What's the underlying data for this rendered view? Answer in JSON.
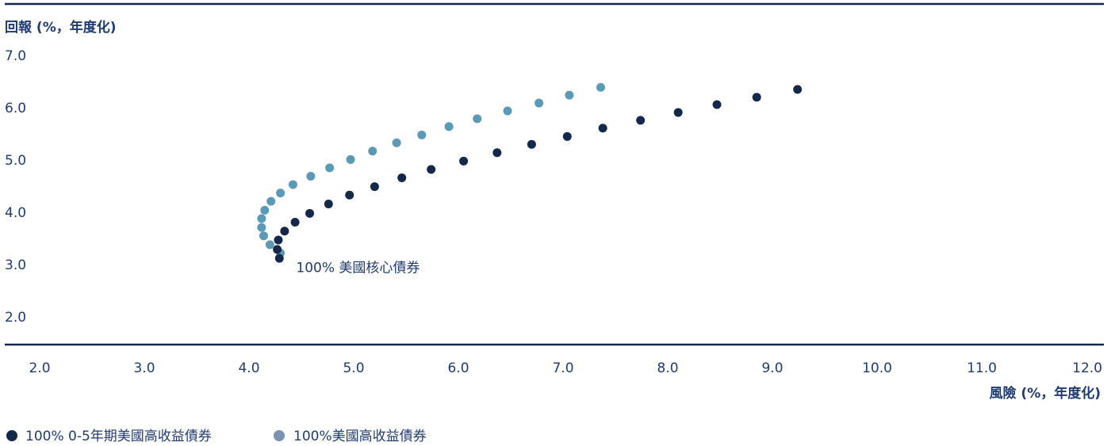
{
  "chart_data": {
    "type": "scatter",
    "ylabel": "回報 (%，年度化)",
    "xlabel": "風險 (%，年度化)",
    "xlim": [
      2.0,
      12.0
    ],
    "ylim": [
      2.0,
      7.0
    ],
    "x_ticks": [
      "2.0",
      "3.0",
      "4.0",
      "5.0",
      "6.0",
      "7.0",
      "8.0",
      "9.0",
      "10.0",
      "11.0",
      "12.0"
    ],
    "y_ticks": [
      "7.0",
      "6.0",
      "5.0",
      "4.0",
      "3.0",
      "2.0"
    ],
    "grid": false,
    "legend_position": "bottom-left",
    "annotation": {
      "text": "100% 美國核心債券",
      "x": 4.45,
      "y": 2.95
    },
    "series": [
      {
        "name": "100% 0-5年期美國高收益債券",
        "color": "#14284b",
        "points": [
          [
            4.29,
            3.12
          ],
          [
            4.27,
            3.29
          ],
          [
            4.28,
            3.47
          ],
          [
            4.34,
            3.64
          ],
          [
            4.44,
            3.81
          ],
          [
            4.58,
            3.98
          ],
          [
            4.76,
            4.16
          ],
          [
            4.96,
            4.33
          ],
          [
            5.2,
            4.49
          ],
          [
            5.46,
            4.66
          ],
          [
            5.74,
            4.82
          ],
          [
            6.05,
            4.98
          ],
          [
            6.37,
            5.14
          ],
          [
            6.7,
            5.3
          ],
          [
            7.04,
            5.45
          ],
          [
            7.38,
            5.61
          ],
          [
            7.74,
            5.76
          ],
          [
            8.1,
            5.91
          ],
          [
            8.47,
            6.06
          ],
          [
            8.85,
            6.2
          ],
          [
            9.24,
            6.35
          ]
        ]
      },
      {
        "name": "100%美國高收益債券",
        "color": "#5b9ab7",
        "points": [
          [
            4.3,
            3.22
          ],
          [
            4.2,
            3.38
          ],
          [
            4.14,
            3.55
          ],
          [
            4.12,
            3.71
          ],
          [
            4.12,
            3.88
          ],
          [
            4.15,
            4.04
          ],
          [
            4.21,
            4.21
          ],
          [
            4.3,
            4.37
          ],
          [
            4.42,
            4.53
          ],
          [
            4.59,
            4.69
          ],
          [
            4.77,
            4.85
          ],
          [
            4.97,
            5.01
          ],
          [
            5.18,
            5.17
          ],
          [
            5.41,
            5.33
          ],
          [
            5.65,
            5.48
          ],
          [
            5.91,
            5.64
          ],
          [
            6.18,
            5.79
          ],
          [
            6.47,
            5.94
          ],
          [
            6.77,
            6.09
          ],
          [
            7.06,
            6.24
          ],
          [
            7.36,
            6.39
          ]
        ]
      }
    ]
  }
}
